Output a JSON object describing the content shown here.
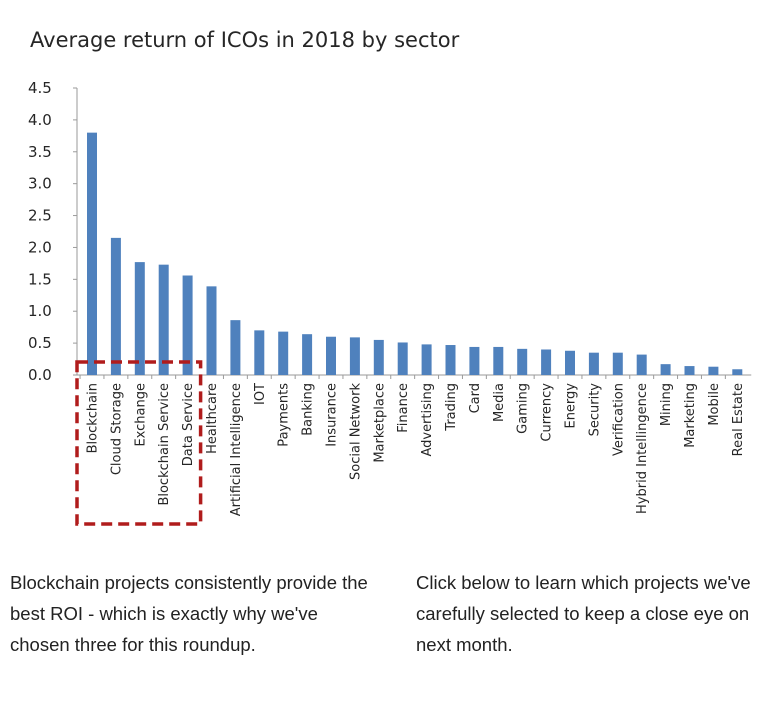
{
  "chart_data": {
    "type": "bar",
    "title": "Average return of ICOs in 2018 by sector",
    "xlabel": "",
    "ylabel": "",
    "ylim": [
      0,
      4.5
    ],
    "yticks": [
      "0.0",
      "0.5",
      "1.0",
      "1.5",
      "2.0",
      "2.5",
      "3.0",
      "3.5",
      "4.0",
      "4.5"
    ],
    "grid": false,
    "legend": "none",
    "bar_color": "#4f81bd",
    "highlight_color": "#b01c1c",
    "highlight_categories": [
      "Blockchain",
      "Cloud Storage",
      "Exchange",
      "Blockchain Service",
      "Data Service"
    ],
    "categories": [
      "Blockchain",
      "Cloud Storage",
      "Exchange",
      "Blockchain Service",
      "Data Service",
      "Healthcare",
      "Artificial Intelligence",
      "IOT",
      "Payments",
      "Banking",
      "Insurance",
      "Social Network",
      "Marketplace",
      "Finance",
      "Advertising",
      "Trading",
      "Card",
      "Media",
      "Gaming",
      "Currency",
      "Energy",
      "Security",
      "Verification",
      "Hybrid Intellingence",
      "Mining",
      "Marketing",
      "Mobile",
      "Real Estate"
    ],
    "values": [
      3.8,
      2.15,
      1.77,
      1.73,
      1.56,
      1.39,
      0.86,
      0.7,
      0.68,
      0.64,
      0.6,
      0.59,
      0.55,
      0.51,
      0.48,
      0.47,
      0.44,
      0.44,
      0.41,
      0.4,
      0.38,
      0.35,
      0.35,
      0.32,
      0.17,
      0.14,
      0.13,
      0.09
    ]
  },
  "captions": {
    "left": "Blockchain projects consistently provide the best ROI - which is exactly why we've chosen three for this roundup.",
    "right": "Click below to learn which projects we've carefully selected to keep a close eye on next month."
  }
}
